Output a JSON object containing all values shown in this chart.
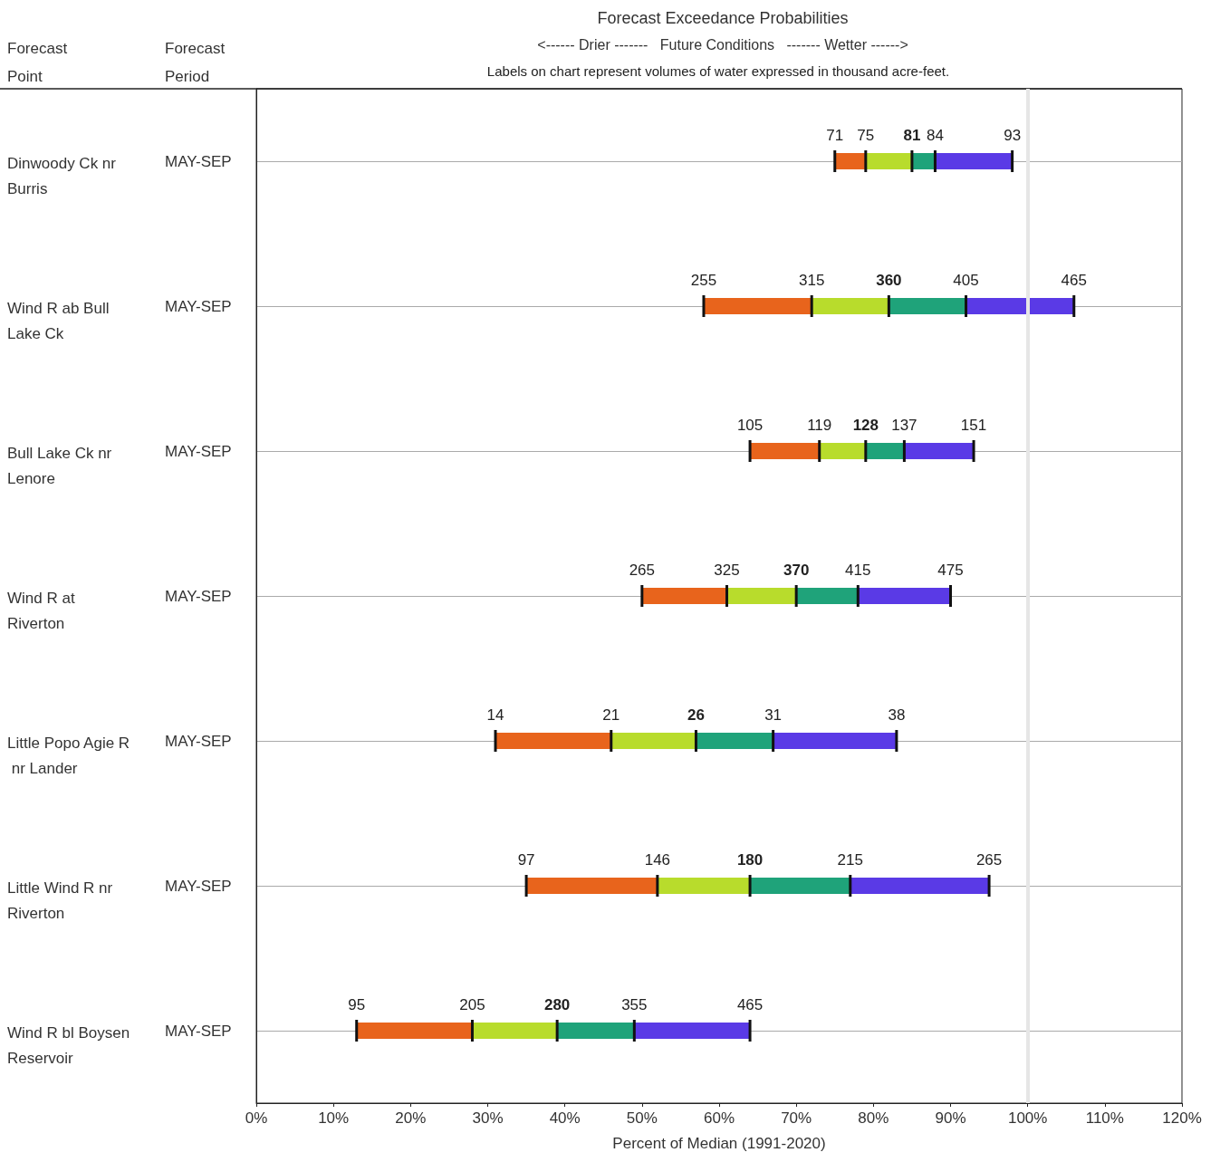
{
  "chart_data": {
    "type": "bar",
    "orientation": "horizontal",
    "title": "Forecast Exceedance Probabilities",
    "subtitle": "<------ Drier -------   Future Conditions   ------- Wetter ------>",
    "xlabel": "Percent of Median (1991-2020)",
    "categories": [
      "Dinwoody Ck nr Burris",
      "Wind R ab Bull Lake Ck",
      "Bull Lake Ck nr Lenore",
      "Wind R at Riverton",
      "Little Popo Agie R nr Lander",
      "Little Wind R nr Riverton",
      "Wind R bl Boysen Reservoir"
    ],
    "series": [
      {
        "color": "#e8641c",
        "base": [
          75,
          58,
          64,
          50,
          31,
          35,
          13
        ],
        "values": [
          4,
          14,
          9,
          11,
          15,
          17,
          15
        ]
      },
      {
        "color": "#b8dc2c",
        "base": [
          79,
          72,
          73,
          61,
          46,
          52,
          28
        ],
        "values": [
          6,
          10,
          6,
          9,
          11,
          12,
          11
        ]
      },
      {
        "color": "#1fa37a",
        "base": [
          85,
          82,
          79,
          70,
          57,
          64,
          39
        ],
        "values": [
          3,
          10,
          5,
          8,
          10,
          13,
          10
        ]
      },
      {
        "color": "#5a3ae6",
        "base": [
          88,
          92,
          84,
          78,
          67,
          77,
          49
        ],
        "values": [
          10,
          14,
          9,
          12,
          16,
          18,
          15
        ]
      }
    ],
    "xlim": [
      0,
      120
    ],
    "xticks": [
      {
        "value": 0,
        "label": "0%"
      },
      {
        "value": 10,
        "label": "10%"
      },
      {
        "value": 20,
        "label": "20%"
      },
      {
        "value": 30,
        "label": "30%"
      },
      {
        "value": 40,
        "label": "40%"
      },
      {
        "value": 50,
        "label": "50%"
      },
      {
        "value": 60,
        "label": "60%"
      },
      {
        "value": 70,
        "label": "70%"
      },
      {
        "value": 80,
        "label": "80%"
      },
      {
        "value": 90,
        "label": "90%"
      },
      {
        "value": 100,
        "label": "100%"
      },
      {
        "value": 110,
        "label": "110%"
      },
      {
        "value": 120,
        "label": "120%"
      }
    ],
    "grid": "y",
    "ref_lines": [
      {
        "axis": "x",
        "value": 100,
        "color": "#e6e6e6"
      }
    ],
    "annotations": [
      "Forecast Point",
      "Forecast Period",
      "Labels on chart represent volumes of water expressed in thousand acre-feet.",
      "MAY-SEP",
      "MAY-SEP",
      "MAY-SEP",
      "MAY-SEP",
      "MAY-SEP",
      "MAY-SEP",
      "MAY-SEP",
      "71",
      "75",
      "81",
      "84",
      "93",
      "255",
      "315",
      "360",
      "405",
      "465",
      "105",
      "119",
      "128",
      "137",
      "151",
      "265",
      "325",
      "370",
      "415",
      "475",
      "14",
      "21",
      "26",
      "31",
      "38",
      "97",
      "146",
      "180",
      "215",
      "265",
      "95",
      "205",
      "280",
      "355",
      "465"
    ]
  }
}
